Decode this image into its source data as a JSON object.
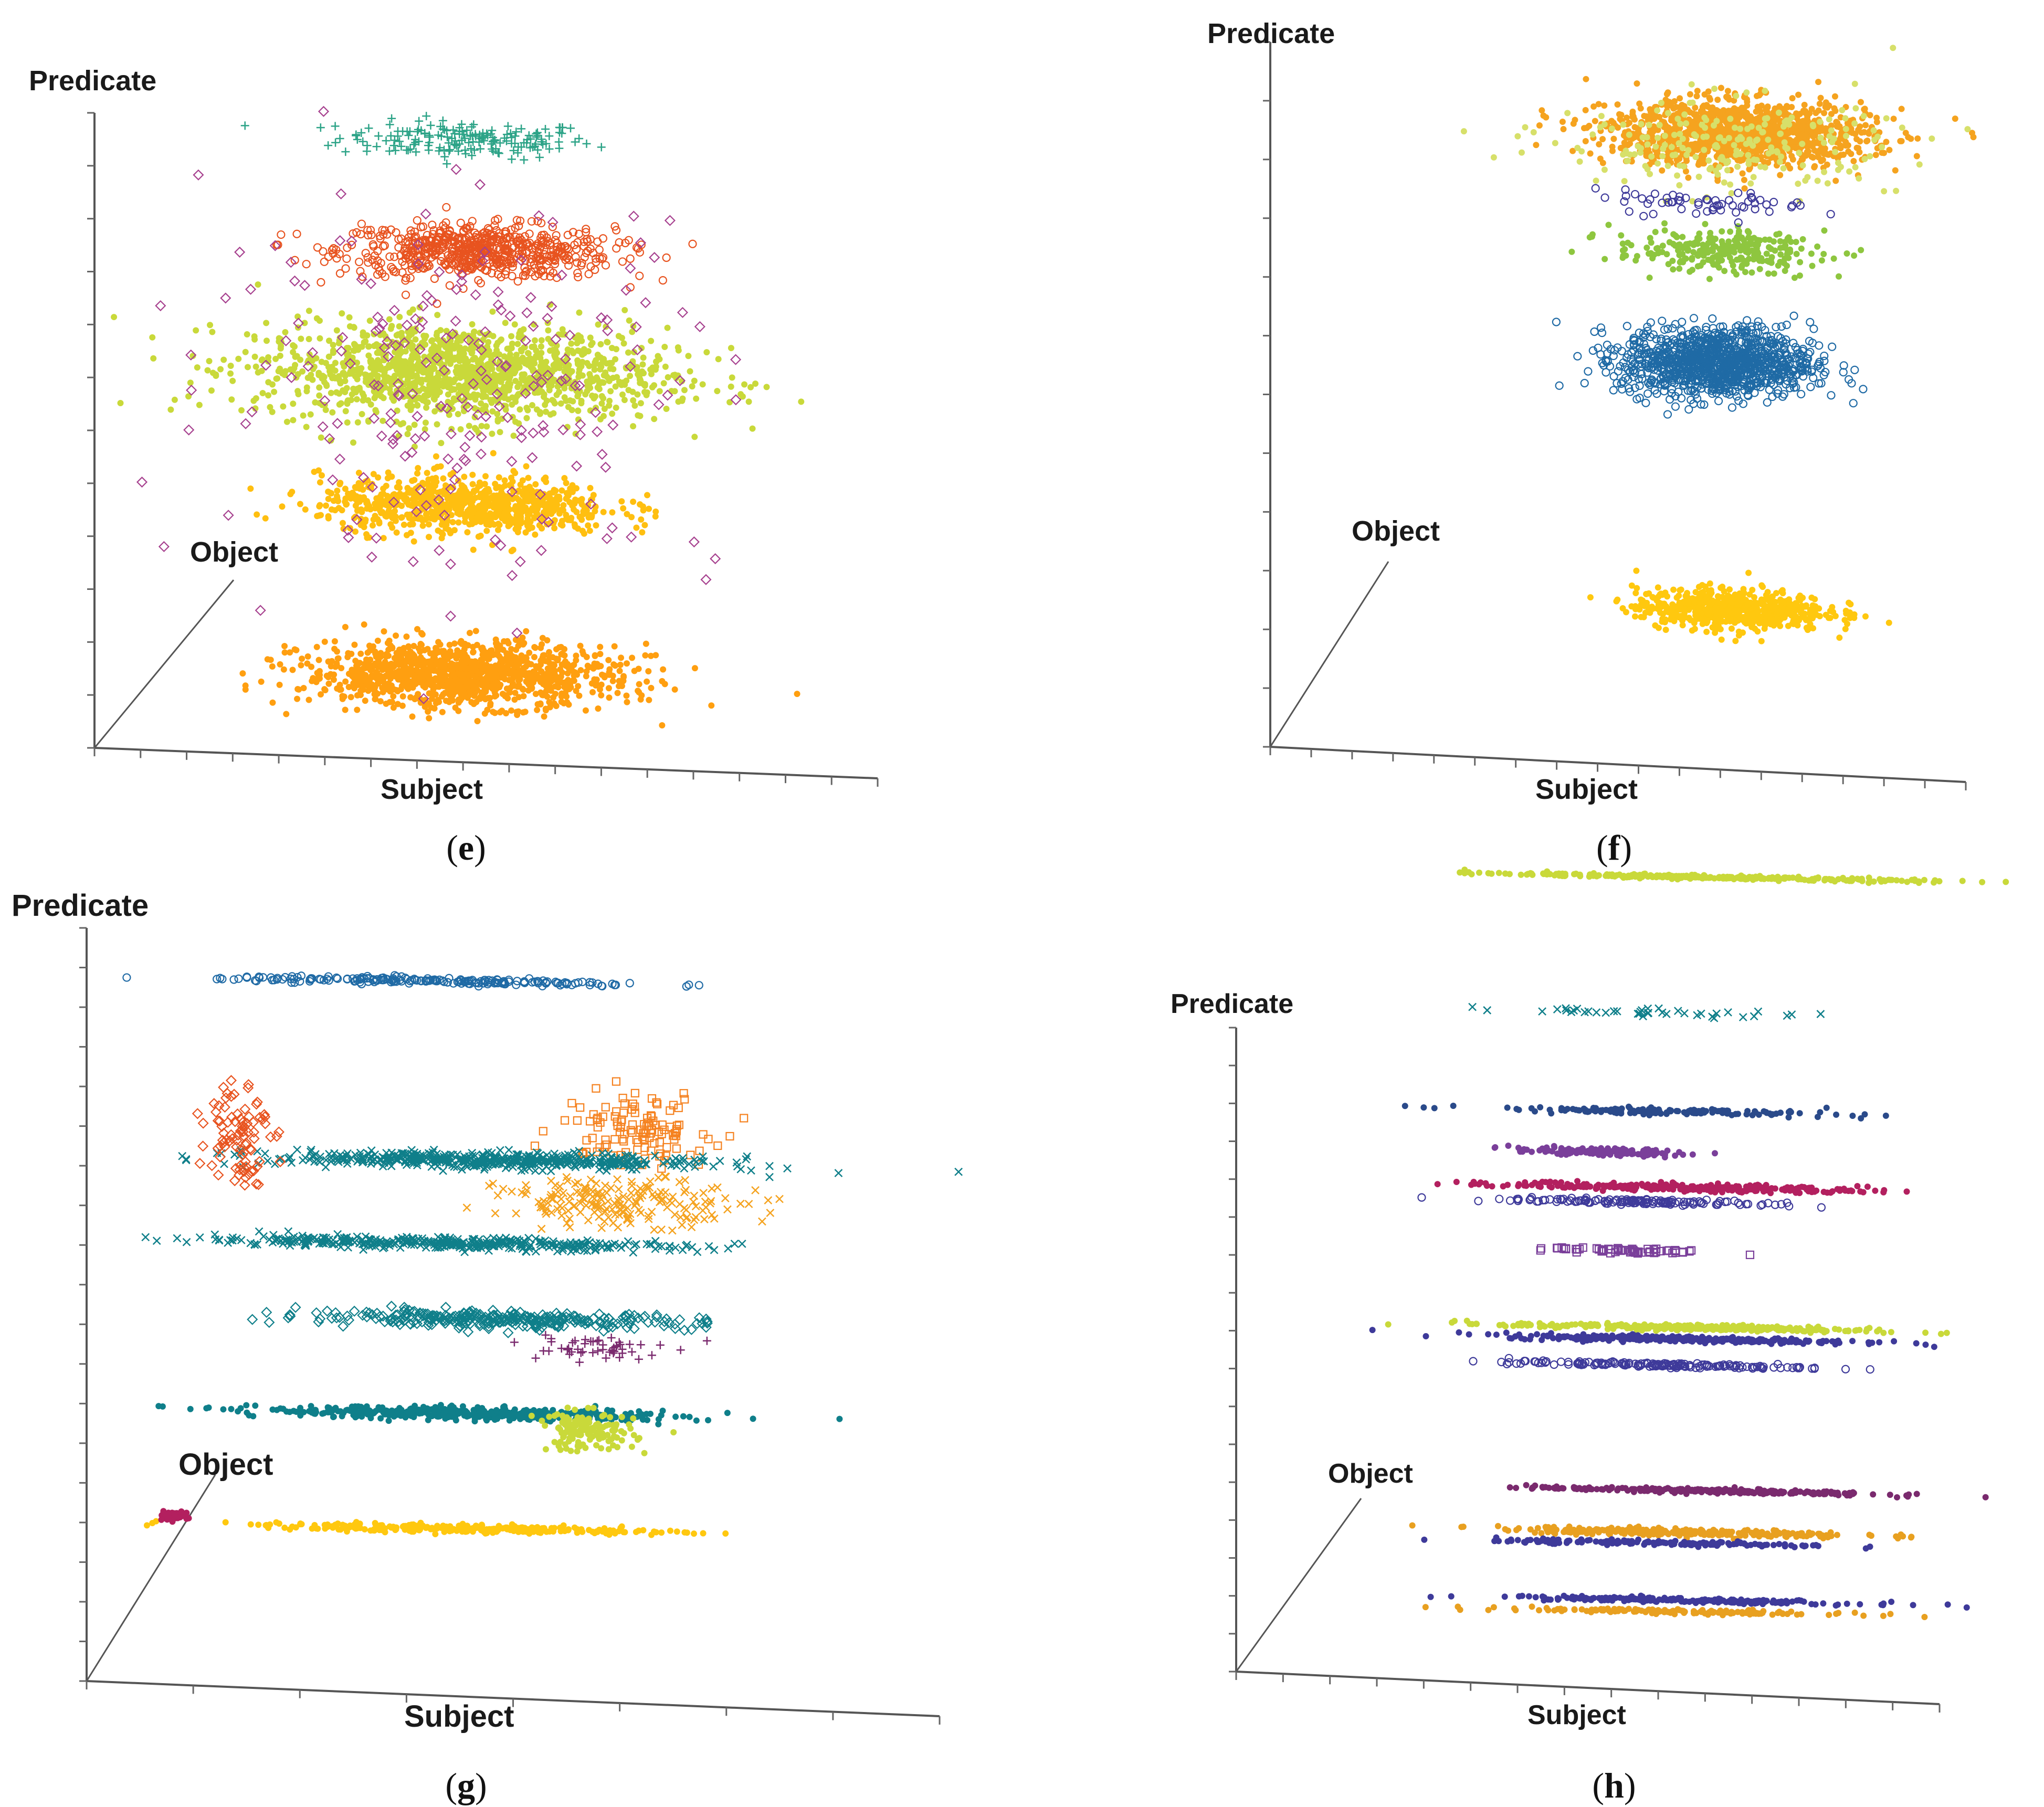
{
  "figure": {
    "panels": [
      {
        "id": "e",
        "caption_open": "(",
        "caption_letter": "e",
        "caption_close": ")"
      },
      {
        "id": "f",
        "caption_open": "(",
        "caption_letter": "f",
        "caption_close": ")"
      },
      {
        "id": "g",
        "caption_open": "(",
        "caption_letter": "g",
        "caption_close": ")"
      },
      {
        "id": "h",
        "caption_open": "(",
        "caption_letter": "h",
        "caption_close": ")"
      }
    ]
  },
  "chart_data": [
    {
      "panel": "e",
      "type": "scatter",
      "title": "",
      "xlabel": "Subject",
      "ylabel": "Predicate",
      "zlabel": "Object",
      "xlim": [
        0,
        16
      ],
      "ylim": [
        0,
        12
      ],
      "x_ticks": 17,
      "y_ticks": 12,
      "clusters": [
        {
          "color": "#2ca387",
          "marker": "plus",
          "x": 7.6,
          "y": 11.6,
          "spread_x": 2.6,
          "spread_y": 0.35,
          "count": 180
        },
        {
          "color": "#e8531f",
          "marker": "circle",
          "x": 7.8,
          "y": 9.5,
          "spread_x": 2.8,
          "spread_y": 0.5,
          "count": 620
        },
        {
          "color": "#c9d93a",
          "marker": "dot",
          "x": 7.5,
          "y": 7.2,
          "spread_x": 4.2,
          "spread_y": 0.9,
          "count": 1400
        },
        {
          "color": "#ffbf10",
          "marker": "dot",
          "x": 7.6,
          "y": 4.7,
          "spread_x": 3.0,
          "spread_y": 0.55,
          "count": 800
        },
        {
          "color": "#ff9f10",
          "marker": "dot",
          "x": 7.5,
          "y": 1.5,
          "spread_x": 3.2,
          "spread_y": 0.6,
          "count": 1200
        },
        {
          "color": "#a7418f",
          "marker": "diamond",
          "x": 7.6,
          "y": 7.0,
          "spread_x": 5.2,
          "spread_y": 3.6,
          "count": 220
        }
      ]
    },
    {
      "panel": "f",
      "type": "scatter",
      "title": "",
      "xlabel": "Subject",
      "ylabel": "Predicate",
      "zlabel": "Object",
      "xlim": [
        0,
        16
      ],
      "ylim": [
        0,
        12
      ],
      "x_ticks": 17,
      "y_ticks": 12,
      "clusters": [
        {
          "color": "#f5a31f",
          "marker": "dot",
          "x": 10.8,
          "y": 10.6,
          "spread_x": 3.0,
          "spread_y": 0.55,
          "count": 1300
        },
        {
          "color": "#d7e06a",
          "marker": "dot",
          "x": 10.5,
          "y": 10.4,
          "spread_x": 4.0,
          "spread_y": 0.8,
          "count": 220
        },
        {
          "color": "#8ec63f",
          "marker": "dot",
          "x": 10.3,
          "y": 8.6,
          "spread_x": 2.4,
          "spread_y": 0.35,
          "count": 260
        },
        {
          "color": "#1f6aa5",
          "marker": "circle",
          "x": 10.3,
          "y": 6.7,
          "spread_x": 2.2,
          "spread_y": 0.6,
          "count": 1100
        },
        {
          "color": "#ffc80f",
          "marker": "dot",
          "x": 10.6,
          "y": 2.5,
          "spread_x": 2.2,
          "spread_y": 0.35,
          "count": 600
        },
        {
          "color": "#3e3a9a",
          "marker": "circle",
          "x": 10.0,
          "y": 9.4,
          "spread_x": 2.5,
          "spread_y": 0.2,
          "count": 60
        }
      ]
    },
    {
      "panel": "g",
      "type": "scatter",
      "title": "",
      "xlabel": "Subject",
      "ylabel": "Predicate",
      "zlabel": "Object",
      "xlim": [
        0,
        14
      ],
      "ylim": [
        0,
        19
      ],
      "x_ticks": 8,
      "y_ticks": 19,
      "clusters": [
        {
          "color": "#1f6aa5",
          "marker": "circle",
          "x": 5.8,
          "y": 17.8,
          "spread_x": 3.6,
          "spread_y": 0.08,
          "count": 200
        },
        {
          "color": "#f58220",
          "marker": "square",
          "x": 9.0,
          "y": 14.2,
          "spread_x": 1.2,
          "spread_y": 0.9,
          "count": 120
        },
        {
          "color": "#0f7f8a",
          "marker": "x",
          "x": 6.6,
          "y": 13.3,
          "spread_x": 3.6,
          "spread_y": 0.2,
          "count": 500
        },
        {
          "color": "#f5a31f",
          "marker": "x",
          "x": 8.8,
          "y": 12.3,
          "spread_x": 2.0,
          "spread_y": 0.6,
          "count": 200
        },
        {
          "color": "#0f7f8a",
          "marker": "x",
          "x": 5.8,
          "y": 11.2,
          "spread_x": 4.0,
          "spread_y": 0.15,
          "count": 380
        },
        {
          "color": "#0f7f8a",
          "marker": "diamond",
          "x": 6.8,
          "y": 9.3,
          "spread_x": 3.2,
          "spread_y": 0.2,
          "count": 300
        },
        {
          "color": "#0f7f8a",
          "marker": "dot",
          "x": 6.3,
          "y": 6.9,
          "spread_x": 3.4,
          "spread_y": 0.15,
          "count": 450
        },
        {
          "color": "#c9d93a",
          "marker": "dot",
          "x": 8.2,
          "y": 6.5,
          "spread_x": 0.8,
          "spread_y": 0.5,
          "count": 140
        },
        {
          "color": "#ffc80f",
          "marker": "dot",
          "x": 6.3,
          "y": 4.0,
          "spread_x": 3.4,
          "spread_y": 0.1,
          "count": 300
        },
        {
          "color": "#b3205f",
          "marker": "dot",
          "x": 1.4,
          "y": 4.2,
          "spread_x": 0.25,
          "spread_y": 0.1,
          "count": 60
        },
        {
          "color": "#e8531f",
          "marker": "diamond",
          "x": 2.5,
          "y": 14.0,
          "spread_x": 0.5,
          "spread_y": 1.4,
          "count": 90
        },
        {
          "color": "#7a2a6e",
          "marker": "plus",
          "x": 8.2,
          "y": 8.6,
          "spread_x": 1.2,
          "spread_y": 0.4,
          "count": 50
        }
      ]
    },
    {
      "panel": "h",
      "type": "scatter",
      "title": "",
      "xlabel": "Subject",
      "ylabel": "Predicate",
      "zlabel": "Object",
      "xlim": [
        0,
        14
      ],
      "ylim": [
        0,
        17
      ],
      "x_ticks": 15,
      "y_ticks": 17,
      "clusters": [
        {
          "color": "#c9d93a",
          "marker": "dot",
          "x": 9.5,
          "y": 21.2,
          "spread_x": 4.2,
          "spread_y": 0.05,
          "count": 300
        },
        {
          "color": "#0f7f8a",
          "marker": "x",
          "x": 8.0,
          "y": 17.6,
          "spread_x": 3.6,
          "spread_y": 0.1,
          "count": 40
        },
        {
          "color": "#2a4a8a",
          "marker": "dot",
          "x": 8.5,
          "y": 15.0,
          "spread_x": 3.4,
          "spread_y": 0.08,
          "count": 160
        },
        {
          "color": "#7a3f9a",
          "marker": "dot",
          "x": 7.2,
          "y": 13.9,
          "spread_x": 1.7,
          "spread_y": 0.1,
          "count": 140
        },
        {
          "color": "#b3205f",
          "marker": "dot",
          "x": 8.9,
          "y": 13.0,
          "spread_x": 3.6,
          "spread_y": 0.1,
          "count": 280
        },
        {
          "color": "#3e3a9a",
          "marker": "circle",
          "x": 8.1,
          "y": 12.6,
          "spread_x": 3.0,
          "spread_y": 0.07,
          "count": 140
        },
        {
          "color": "#7a3f9a",
          "marker": "square",
          "x": 7.8,
          "y": 11.3,
          "spread_x": 1.6,
          "spread_y": 0.07,
          "count": 60
        },
        {
          "color": "#c9d93a",
          "marker": "dot",
          "x": 9.0,
          "y": 9.3,
          "spread_x": 3.6,
          "spread_y": 0.08,
          "count": 300
        },
        {
          "color": "#3e3a9a",
          "marker": "dot",
          "x": 8.8,
          "y": 9.0,
          "spread_x": 3.6,
          "spread_y": 0.08,
          "count": 300
        },
        {
          "color": "#3e3a9a",
          "marker": "circle",
          "x": 8.4,
          "y": 8.3,
          "spread_x": 3.0,
          "spread_y": 0.06,
          "count": 160
        },
        {
          "color": "#7a2a6e",
          "marker": "dot",
          "x": 9.3,
          "y": 5.0,
          "spread_x": 3.4,
          "spread_y": 0.06,
          "count": 260
        },
        {
          "color": "#e8a020",
          "marker": "dot",
          "x": 8.8,
          "y": 3.9,
          "spread_x": 3.6,
          "spread_y": 0.1,
          "count": 260
        },
        {
          "color": "#3e3a9a",
          "marker": "dot",
          "x": 8.6,
          "y": 3.6,
          "spread_x": 3.4,
          "spread_y": 0.06,
          "count": 160
        },
        {
          "color": "#3e3a9a",
          "marker": "dot",
          "x": 8.8,
          "y": 2.1,
          "spread_x": 3.6,
          "spread_y": 0.06,
          "count": 220
        },
        {
          "color": "#e8a020",
          "marker": "dot",
          "x": 8.8,
          "y": 1.8,
          "spread_x": 3.6,
          "spread_y": 0.06,
          "count": 140
        }
      ]
    }
  ]
}
